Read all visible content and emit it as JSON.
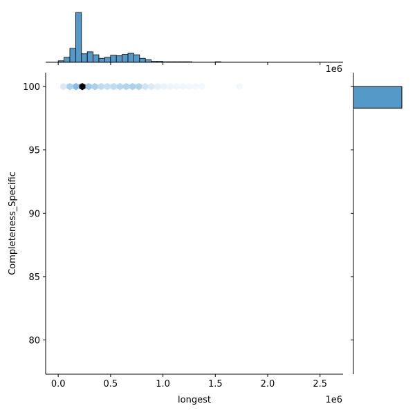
{
  "chart_data": {
    "type": "hexbin-jointplot",
    "title": "",
    "xlabel": "longest",
    "ylabel": "Completeness_Specific",
    "x_offset_label": "1e6",
    "top_offset_label": "1e6",
    "xlim": [
      -0.12,
      2.72
    ],
    "ylim": [
      77.3,
      101.1
    ],
    "x_ticks": [
      0.0,
      0.5,
      1.0,
      1.5,
      2.0,
      2.5
    ],
    "x_tick_labels": [
      "0.0",
      "0.5",
      "1.0",
      "1.5",
      "2.0",
      "2.5"
    ],
    "y_ticks": [
      80,
      85,
      90,
      95,
      100
    ],
    "y_tick_labels": [
      "80",
      "85",
      "90",
      "95",
      "100"
    ],
    "grid": false,
    "colors": {
      "hist_fill": "#5499c7",
      "hist_edge": "#000000",
      "hex_max": "#000000",
      "hex_high": "#7fbde8",
      "hex_mid": "#a9d2f0",
      "hex_low": "#d6e9f8",
      "hex_faint": "#edf5fc"
    },
    "hexbin": {
      "y": 100,
      "cells": [
        {
          "x": 0.05,
          "intensity": 0.12
        },
        {
          "x": 0.11,
          "intensity": 0.3
        },
        {
          "x": 0.17,
          "intensity": 0.45
        },
        {
          "x": 0.23,
          "intensity": 1.0
        },
        {
          "x": 0.29,
          "intensity": 0.35
        },
        {
          "x": 0.35,
          "intensity": 0.3
        },
        {
          "x": 0.41,
          "intensity": 0.22
        },
        {
          "x": 0.47,
          "intensity": 0.2
        },
        {
          "x": 0.53,
          "intensity": 0.22
        },
        {
          "x": 0.59,
          "intensity": 0.25
        },
        {
          "x": 0.65,
          "intensity": 0.27
        },
        {
          "x": 0.71,
          "intensity": 0.3
        },
        {
          "x": 0.77,
          "intensity": 0.28
        },
        {
          "x": 0.83,
          "intensity": 0.15
        },
        {
          "x": 0.89,
          "intensity": 0.1
        },
        {
          "x": 0.95,
          "intensity": 0.07
        },
        {
          "x": 1.01,
          "intensity": 0.05
        },
        {
          "x": 1.07,
          "intensity": 0.04
        },
        {
          "x": 1.13,
          "intensity": 0.03
        },
        {
          "x": 1.19,
          "intensity": 0.03
        },
        {
          "x": 1.25,
          "intensity": 0.02
        },
        {
          "x": 1.31,
          "intensity": 0.02
        },
        {
          "x": 1.37,
          "intensity": 0.02
        },
        {
          "x": 1.73,
          "intensity": 0.02
        }
      ]
    },
    "marginal_x_hist": {
      "bin_width": 0.0555,
      "bins_start": [
        -0.0,
        0.0555,
        0.111,
        0.1665,
        0.222,
        0.2775,
        0.333,
        0.3885,
        0.444,
        0.4995,
        0.555,
        0.6105,
        0.666,
        0.7215,
        0.777,
        0.8325,
        0.888,
        0.9435,
        0.999,
        1.0545,
        1.11,
        1.1655,
        1.221,
        1.2765,
        1.332,
        1.3875,
        1.443,
        1.4985,
        1.554,
        1.6095,
        1.665,
        1.7205,
        1.776,
        1.8315,
        1.887,
        1.9425,
        1.998,
        2.0535,
        2.109,
        2.1645,
        2.22,
        2.2755,
        2.331,
        2.3865,
        2.442,
        2.4975,
        2.553,
        2.6085
      ],
      "counts": [
        3,
        10,
        28,
        100,
        17,
        21,
        15,
        8,
        10,
        14,
        13,
        16,
        18,
        15,
        8,
        5,
        2,
        2,
        1,
        1,
        1,
        1,
        1,
        0,
        0,
        0,
        0,
        1,
        0,
        0,
        0,
        0,
        0,
        0,
        0,
        0,
        0,
        0,
        0,
        0,
        0,
        0,
        0,
        0,
        0,
        0,
        0,
        0
      ]
    },
    "marginal_y_hist": {
      "bins": [
        {
          "y0": 98.3,
          "y1": 100.0,
          "count": 100
        }
      ]
    }
  }
}
